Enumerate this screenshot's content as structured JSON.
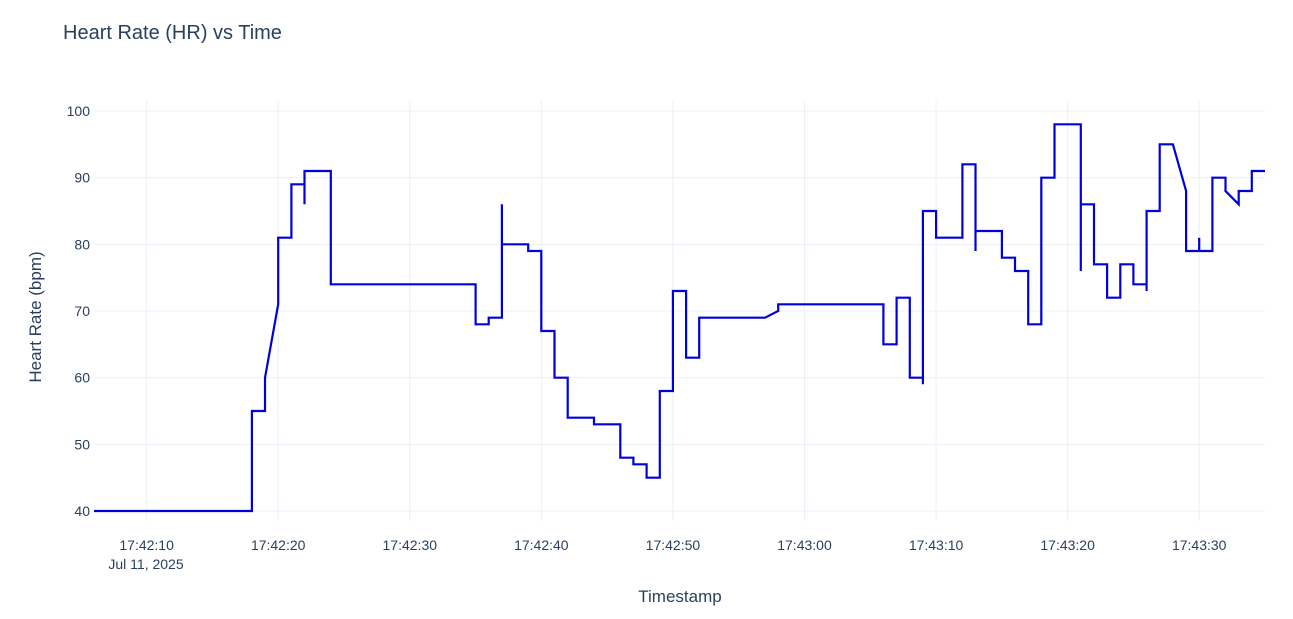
{
  "chart_data": {
    "type": "line",
    "title": "Heart Rate (HR) vs Time",
    "xlabel": "Timestamp",
    "ylabel": "Heart Rate (bpm)",
    "date_label": "Jul 11, 2025",
    "xlim": [
      "17:42:06",
      "17:43:35"
    ],
    "ylim": [
      38.5,
      101.5
    ],
    "grid": true,
    "legend": "none",
    "x_tick_labels": [
      "17:42:10",
      "17:42:20",
      "17:42:30",
      "17:42:40",
      "17:42:50",
      "17:43:00",
      "17:43:10",
      "17:43:20",
      "17:43:30"
    ],
    "y_tick_labels": [
      40,
      50,
      60,
      70,
      80,
      90,
      100
    ],
    "series": [
      {
        "color": "#0000dd",
        "points": [
          [
            "17:42:06",
            40
          ],
          [
            "17:42:18",
            40
          ],
          [
            "17:42:18",
            55
          ],
          [
            "17:42:19",
            55
          ],
          [
            "17:42:19",
            60
          ],
          [
            "17:42:20",
            71
          ],
          [
            "17:42:20",
            81
          ],
          [
            "17:42:21",
            81
          ],
          [
            "17:42:21",
            89
          ],
          [
            "17:42:22",
            89
          ],
          [
            "17:42:22",
            86
          ],
          [
            "17:42:22",
            91
          ],
          [
            "17:42:24",
            91
          ],
          [
            "17:42:24",
            74
          ],
          [
            "17:42:35",
            74
          ],
          [
            "17:42:35",
            68
          ],
          [
            "17:42:36",
            68
          ],
          [
            "17:42:36",
            69
          ],
          [
            "17:42:37",
            69
          ],
          [
            "17:42:37",
            86
          ],
          [
            "17:42:37",
            80
          ],
          [
            "17:42:39",
            80
          ],
          [
            "17:42:39",
            79
          ],
          [
            "17:42:40",
            79
          ],
          [
            "17:42:40",
            67
          ],
          [
            "17:42:41",
            67
          ],
          [
            "17:42:41",
            60
          ],
          [
            "17:42:42",
            60
          ],
          [
            "17:42:42",
            54
          ],
          [
            "17:42:44",
            54
          ],
          [
            "17:42:44",
            53
          ],
          [
            "17:42:46",
            53
          ],
          [
            "17:42:46",
            48
          ],
          [
            "17:42:47",
            48
          ],
          [
            "17:42:47",
            47
          ],
          [
            "17:42:48",
            47
          ],
          [
            "17:42:48",
            45
          ],
          [
            "17:42:49",
            45
          ],
          [
            "17:42:49",
            58
          ],
          [
            "17:42:50",
            58
          ],
          [
            "17:42:50",
            73
          ],
          [
            "17:42:51",
            73
          ],
          [
            "17:42:51",
            63
          ],
          [
            "17:42:52",
            63
          ],
          [
            "17:42:52",
            69
          ],
          [
            "17:42:57",
            69
          ],
          [
            "17:42:58",
            70
          ],
          [
            "17:42:58",
            71
          ],
          [
            "17:43:06",
            71
          ],
          [
            "17:43:06",
            65
          ],
          [
            "17:43:07",
            65
          ],
          [
            "17:43:07",
            72
          ],
          [
            "17:43:08",
            72
          ],
          [
            "17:43:08",
            60
          ],
          [
            "17:43:09",
            60
          ],
          [
            "17:43:09",
            59
          ],
          [
            "17:43:09",
            85
          ],
          [
            "17:43:10",
            85
          ],
          [
            "17:43:10",
            81
          ],
          [
            "17:43:12",
            81
          ],
          [
            "17:43:12",
            92
          ],
          [
            "17:43:13",
            92
          ],
          [
            "17:43:13",
            79
          ],
          [
            "17:43:13",
            82
          ],
          [
            "17:43:15",
            82
          ],
          [
            "17:43:15",
            78
          ],
          [
            "17:43:16",
            78
          ],
          [
            "17:43:16",
            76
          ],
          [
            "17:43:17",
            76
          ],
          [
            "17:43:17",
            68
          ],
          [
            "17:43:18",
            68
          ],
          [
            "17:43:18",
            90
          ],
          [
            "17:43:19",
            90
          ],
          [
            "17:43:19",
            98
          ],
          [
            "17:43:21",
            98
          ],
          [
            "17:43:21",
            76
          ],
          [
            "17:43:21",
            86
          ],
          [
            "17:43:22",
            86
          ],
          [
            "17:43:22",
            77
          ],
          [
            "17:43:23",
            77
          ],
          [
            "17:43:23",
            72
          ],
          [
            "17:43:24",
            72
          ],
          [
            "17:43:24",
            77
          ],
          [
            "17:43:25",
            77
          ],
          [
            "17:43:25",
            74
          ],
          [
            "17:43:26",
            74
          ],
          [
            "17:43:26",
            73
          ],
          [
            "17:43:26",
            85
          ],
          [
            "17:43:27",
            85
          ],
          [
            "17:43:27",
            95
          ],
          [
            "17:43:28",
            95
          ],
          [
            "17:43:29",
            88
          ],
          [
            "17:43:29",
            79
          ],
          [
            "17:43:30",
            79
          ],
          [
            "17:43:30",
            81
          ],
          [
            "17:43:30",
            79
          ],
          [
            "17:43:31",
            79
          ],
          [
            "17:43:31",
            90
          ],
          [
            "17:43:32",
            90
          ],
          [
            "17:43:32",
            88
          ],
          [
            "17:43:33",
            86
          ],
          [
            "17:43:33",
            88
          ],
          [
            "17:43:34",
            88
          ],
          [
            "17:43:34",
            91
          ],
          [
            "17:43:35",
            91
          ]
        ]
      }
    ]
  }
}
